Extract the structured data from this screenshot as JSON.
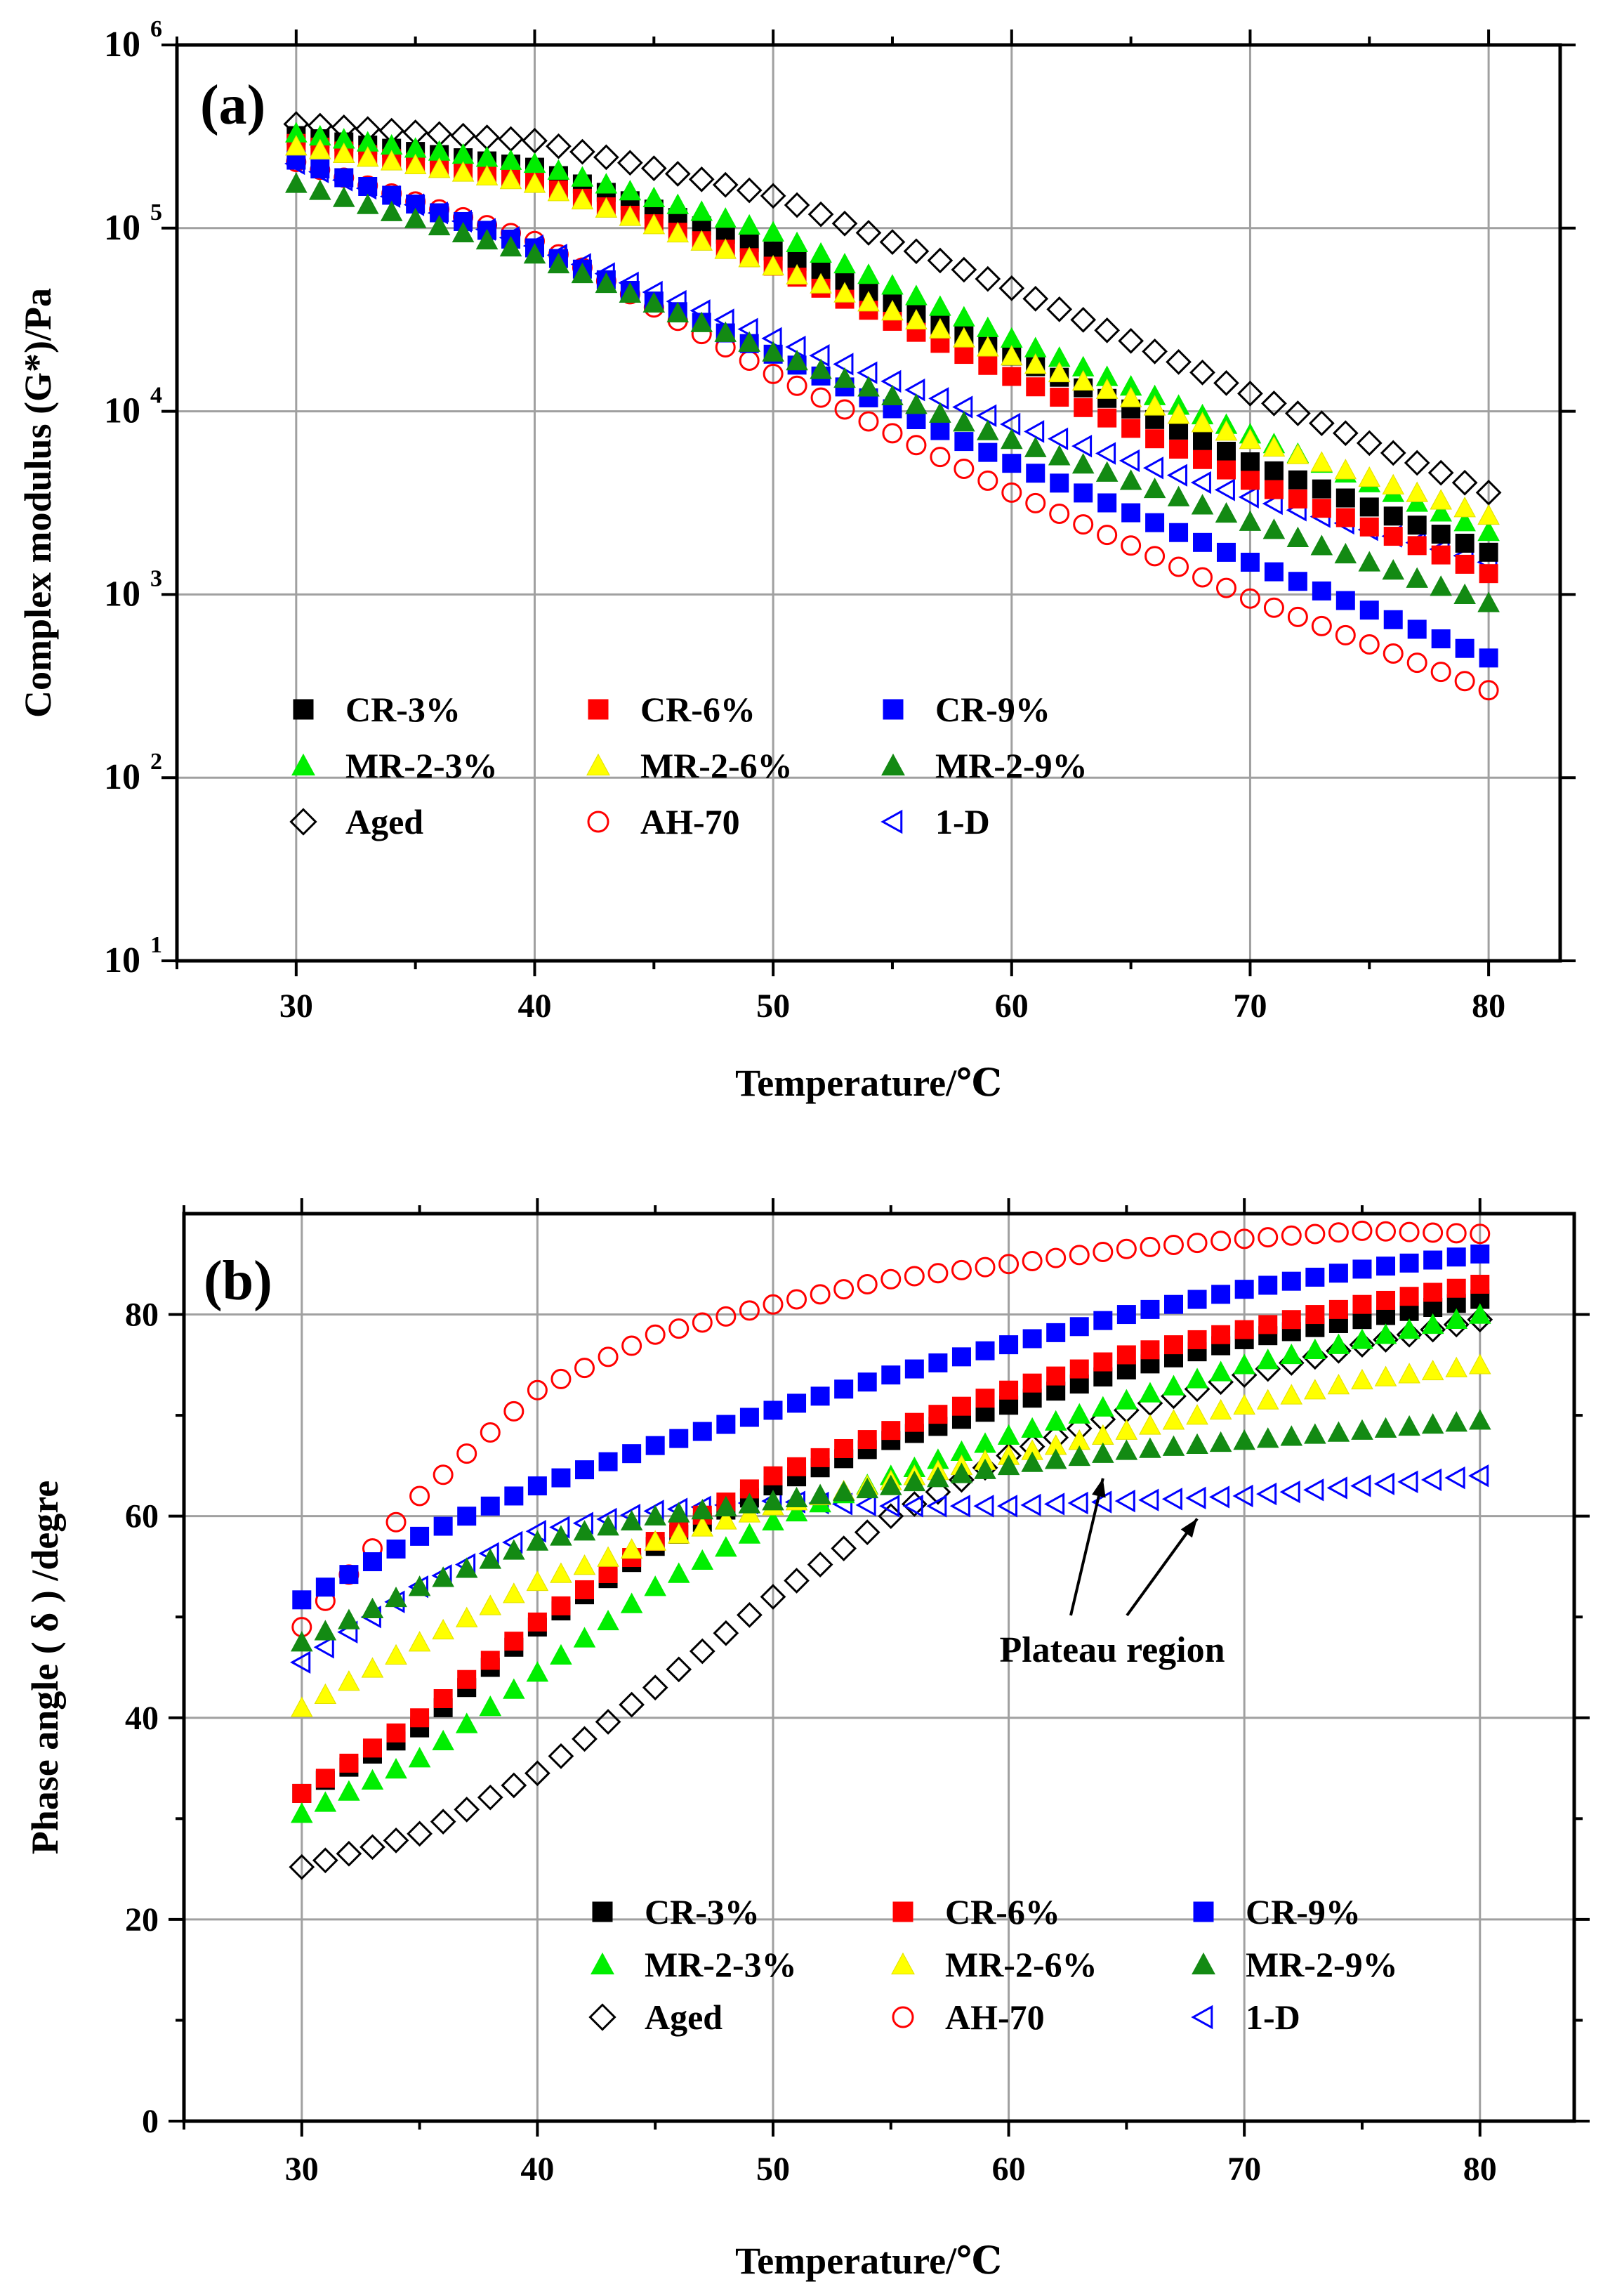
{
  "colors": {
    "black": "#000000",
    "red": "#ff0000",
    "blue": "#0000ff",
    "green": "#00ee00",
    "yellow": "#ffff00",
    "darkgreen": "#138a13",
    "grid": "#a0a0a0"
  },
  "chart_data": [
    {
      "type": "scatter",
      "panel_label": "(a)",
      "xlabel": "Temperature/℃",
      "ylabel": "Complex modulus (G*)/Pa",
      "xlim": [
        25,
        83
      ],
      "xticks": [
        30,
        40,
        50,
        60,
        70,
        80
      ],
      "ylim": [
        10,
        1000000
      ],
      "yscale": "log",
      "yticks": [
        10,
        100,
        1000,
        10000,
        100000,
        1000000
      ],
      "ytick_exponents": [
        "1",
        "2",
        "3",
        "4",
        "5",
        "6"
      ],
      "ytick_base": "10",
      "grid": true,
      "legend_position": "lower-left",
      "x_range": [
        30,
        80
      ],
      "series": [
        {
          "name": "CR-3%",
          "marker": "square",
          "color": "black",
          "filled": true,
          "x_step": 1,
          "anchors_x": [
            30,
            40,
            50,
            60,
            70,
            80
          ],
          "anchors_y": [
            320000,
            215000,
            75000,
            20000,
            5300,
            1700
          ]
        },
        {
          "name": "CR-6%",
          "marker": "square",
          "color": "red",
          "filled": true,
          "x_step": 1,
          "anchors_x": [
            30,
            40,
            50,
            60,
            70,
            80
          ],
          "anchors_y": [
            290000,
            180000,
            62000,
            15500,
            4200,
            1300
          ]
        },
        {
          "name": "CR-9%",
          "marker": "square",
          "color": "blue",
          "filled": true,
          "x_step": 1,
          "anchors_x": [
            30,
            40,
            50,
            60,
            70,
            80
          ],
          "anchors_y": [
            235000,
            78000,
            20500,
            5200,
            1500,
            450
          ]
        },
        {
          "name": "MR-2-3%",
          "marker": "triangle-up",
          "color": "green",
          "filled": true,
          "x_step": 1,
          "anchors_x": [
            30,
            40,
            50,
            60,
            70,
            80
          ],
          "anchors_y": [
            330000,
            225000,
            95000,
            25000,
            7500,
            2200
          ]
        },
        {
          "name": "MR-2-6%",
          "marker": "triangle-up",
          "color": "yellow",
          "filled": true,
          "x_step": 1,
          "anchors_x": [
            30,
            40,
            50,
            60,
            70,
            80
          ],
          "anchors_y": [
            280000,
            175000,
            62000,
            20000,
            7000,
            2700
          ]
        },
        {
          "name": "MR-2-9%",
          "marker": "triangle-up",
          "color": "darkgreen",
          "filled": true,
          "x_step": 1,
          "anchors_x": [
            30,
            40,
            50,
            60,
            70,
            80
          ],
          "anchors_y": [
            175000,
            72000,
            21000,
            7000,
            2500,
            900
          ]
        },
        {
          "name": "Aged",
          "marker": "diamond",
          "color": "black",
          "filled": false,
          "x_step": 1,
          "anchors_x": [
            30,
            40,
            50,
            60,
            70,
            80
          ],
          "anchors_y": [
            370000,
            300000,
            150000,
            47000,
            12500,
            3600
          ]
        },
        {
          "name": "AH-70",
          "marker": "circle",
          "color": "red",
          "filled": false,
          "x_step": 1,
          "anchors_x": [
            30,
            40,
            50,
            60,
            70,
            80
          ],
          "anchors_y": [
            230000,
            85000,
            16000,
            3600,
            950,
            300
          ]
        },
        {
          "name": "1-D",
          "marker": "triangle-left",
          "color": "blue",
          "filled": false,
          "x_step": 1,
          "anchors_x": [
            30,
            40,
            50,
            60,
            70,
            80
          ],
          "anchors_y": [
            225000,
            80000,
            25000,
            8500,
            3400,
            1500
          ]
        }
      ]
    },
    {
      "type": "scatter",
      "panel_label": "(b)",
      "xlabel": "Temperature/℃",
      "ylabel": "Phase angle ( δ ) /degre",
      "xlim": [
        25,
        84
      ],
      "xticks": [
        30,
        40,
        50,
        60,
        70,
        80
      ],
      "ylim": [
        0,
        90
      ],
      "yticks": [
        0,
        20,
        40,
        60,
        80
      ],
      "grid": true,
      "legend_position": "lower-right",
      "annotation": {
        "text": "Plateau region",
        "arrow_targets": [
          [
            64,
            65
          ],
          [
            68,
            61
          ]
        ]
      },
      "x_range": [
        30,
        80
      ],
      "series": [
        {
          "name": "CR-3%",
          "marker": "square",
          "color": "black",
          "filled": true,
          "x_step": 1,
          "anchors_x": [
            30,
            35,
            40,
            45,
            50,
            55,
            60,
            65,
            70,
            75,
            80
          ],
          "anchors_y": [
            32.5,
            39,
            49,
            57,
            63,
            67.5,
            71,
            74.5,
            77.5,
            79.5,
            81.5
          ]
        },
        {
          "name": "CR-6%",
          "marker": "square",
          "color": "red",
          "filled": true,
          "x_step": 1,
          "anchors_x": [
            30,
            35,
            40,
            45,
            50,
            55,
            60,
            65,
            70,
            75,
            80
          ],
          "anchors_y": [
            32.5,
            40,
            49.5,
            57.5,
            64,
            68.5,
            72.5,
            76,
            78.5,
            81,
            83
          ]
        },
        {
          "name": "CR-9%",
          "marker": "square",
          "color": "blue",
          "filled": true,
          "x_step": 1,
          "anchors_x": [
            30,
            35,
            40,
            45,
            50,
            55,
            60,
            65,
            70,
            75,
            80
          ],
          "anchors_y": [
            51.7,
            58,
            63,
            67,
            70.5,
            74,
            77,
            80,
            82.5,
            84.5,
            86
          ]
        },
        {
          "name": "MR-2-3%",
          "marker": "triangle-up",
          "color": "green",
          "filled": true,
          "x_step": 1,
          "anchors_x": [
            30,
            35,
            40,
            45,
            50,
            55,
            60,
            65,
            70,
            75,
            80
          ],
          "anchors_y": [
            30.5,
            36,
            44.5,
            53,
            59.5,
            64,
            68,
            71.5,
            75,
            77.5,
            80
          ]
        },
        {
          "name": "MR-2-6%",
          "marker": "triangle-up",
          "color": "yellow",
          "filled": true,
          "x_step": 1,
          "anchors_x": [
            30,
            35,
            40,
            45,
            50,
            55,
            60,
            65,
            70,
            75,
            80
          ],
          "anchors_y": [
            41,
            47.5,
            53.5,
            57.5,
            61,
            63.5,
            66,
            68.5,
            71,
            73.5,
            75
          ]
        },
        {
          "name": "MR-2-9%",
          "marker": "triangle-up",
          "color": "darkgreen",
          "filled": true,
          "x_step": 1,
          "anchors_x": [
            30,
            35,
            40,
            45,
            50,
            55,
            60,
            65,
            70,
            75,
            80
          ],
          "anchors_y": [
            47.5,
            53,
            57.5,
            60,
            61.5,
            63,
            65,
            66.5,
            67.5,
            68.5,
            69.5
          ]
        },
        {
          "name": "Aged",
          "marker": "diamond",
          "color": "black",
          "filled": false,
          "x_step": 1,
          "anchors_x": [
            30,
            35,
            40,
            45,
            50,
            55,
            60,
            65,
            70,
            75,
            80
          ],
          "anchors_y": [
            25.2,
            28.5,
            34.5,
            43,
            52,
            60,
            66,
            70.5,
            74,
            77,
            79.5
          ]
        },
        {
          "name": "AH-70",
          "marker": "circle",
          "color": "red",
          "filled": false,
          "x_step": 1,
          "anchors_x": [
            30,
            35,
            40,
            45,
            50,
            55,
            60,
            65,
            70,
            75,
            80
          ],
          "anchors_y": [
            49,
            62,
            72.5,
            78,
            81,
            83.5,
            85,
            86.5,
            87.5,
            88.3,
            88
          ]
        },
        {
          "name": "1-D",
          "marker": "triangle-left",
          "color": "blue",
          "filled": false,
          "x_step": 1,
          "anchors_x": [
            30,
            35,
            40,
            45,
            50,
            55,
            60,
            65,
            70,
            75,
            80
          ],
          "anchors_y": [
            45.5,
            53,
            58.5,
            60.5,
            61.5,
            61,
            61,
            61.5,
            62,
            63,
            64
          ]
        }
      ]
    }
  ]
}
